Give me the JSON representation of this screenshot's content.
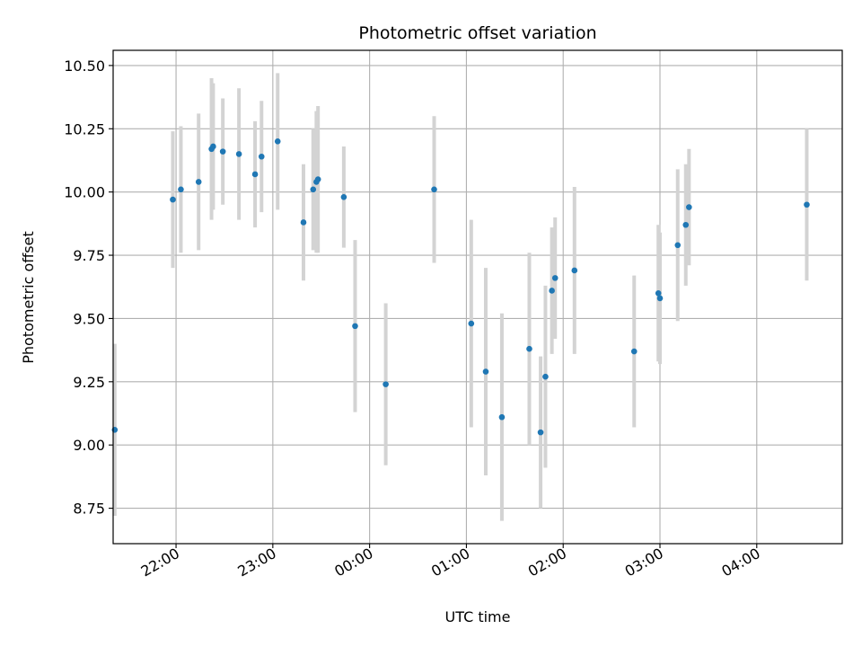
{
  "chart_data": {
    "type": "scatter",
    "title": "Photometric offset variation",
    "xlabel": "UTC time",
    "ylabel": "Photometric offset",
    "x_axis_type": "time",
    "xlim": [
      "21:21",
      "04:53"
    ],
    "ylim": [
      8.61,
      10.56
    ],
    "xticks": [
      {
        "time": "22:00",
        "label": "22:00"
      },
      {
        "time": "23:00",
        "label": "23:00"
      },
      {
        "time": "24:00",
        "label": "00:00"
      },
      {
        "time": "25:00",
        "label": "01:00"
      },
      {
        "time": "26:00",
        "label": "02:00"
      },
      {
        "time": "27:00",
        "label": "03:00"
      },
      {
        "time": "28:00",
        "label": "04:00"
      }
    ],
    "yticks": [
      8.75,
      9.0,
      9.25,
      9.5,
      9.75,
      10.0,
      10.25,
      10.5
    ],
    "grid": true,
    "colors": {
      "marker": "#1f77b4",
      "errorbar": "#d3d3d3",
      "grid": "#b0b0b0"
    },
    "points": [
      {
        "time": "21:22",
        "y": 9.06,
        "err": 0.34
      },
      {
        "time": "21:58",
        "y": 9.97,
        "err": 0.27
      },
      {
        "time": "22:03",
        "y": 10.01,
        "err": 0.25
      },
      {
        "time": "22:14",
        "y": 10.04,
        "err": 0.27
      },
      {
        "time": "22:22",
        "y": 10.17,
        "err": 0.28
      },
      {
        "time": "22:23",
        "y": 10.18,
        "err": 0.25
      },
      {
        "time": "22:29",
        "y": 10.16,
        "err": 0.21
      },
      {
        "time": "22:39",
        "y": 10.15,
        "err": 0.26
      },
      {
        "time": "22:49",
        "y": 10.07,
        "err": 0.21
      },
      {
        "time": "22:53",
        "y": 10.14,
        "err": 0.22
      },
      {
        "time": "23:03",
        "y": 10.2,
        "err": 0.27
      },
      {
        "time": "23:19",
        "y": 9.88,
        "err": 0.23
      },
      {
        "time": "23:25",
        "y": 10.01,
        "err": 0.24
      },
      {
        "time": "23:27",
        "y": 10.04,
        "err": 0.28
      },
      {
        "time": "23:28",
        "y": 10.05,
        "err": 0.29
      },
      {
        "time": "23:44",
        "y": 9.98,
        "err": 0.2
      },
      {
        "time": "23:51",
        "y": 9.47,
        "err": 0.34
      },
      {
        "time": "00:10",
        "y": 9.24,
        "err": 0.32
      },
      {
        "time": "00:40",
        "y": 10.01,
        "err": 0.29
      },
      {
        "time": "01:03",
        "y": 9.48,
        "err": 0.41
      },
      {
        "time": "01:12",
        "y": 9.29,
        "err": 0.41
      },
      {
        "time": "01:22",
        "y": 9.11,
        "err": 0.41
      },
      {
        "time": "01:39",
        "y": 9.38,
        "err": 0.38
      },
      {
        "time": "01:46",
        "y": 9.05,
        "err": 0.3
      },
      {
        "time": "01:49",
        "y": 9.27,
        "err": 0.36
      },
      {
        "time": "01:53",
        "y": 9.61,
        "err": 0.25
      },
      {
        "time": "01:55",
        "y": 9.66,
        "err": 0.24
      },
      {
        "time": "02:07",
        "y": 9.69,
        "err": 0.33
      },
      {
        "time": "02:44",
        "y": 9.37,
        "err": 0.3
      },
      {
        "time": "02:59",
        "y": 9.6,
        "err": 0.27
      },
      {
        "time": "03:00",
        "y": 9.58,
        "err": 0.26
      },
      {
        "time": "03:11",
        "y": 9.79,
        "err": 0.3
      },
      {
        "time": "03:16",
        "y": 9.87,
        "err": 0.24
      },
      {
        "time": "03:18",
        "y": 9.94,
        "err": 0.23
      },
      {
        "time": "04:31",
        "y": 9.95,
        "err": 0.3
      }
    ]
  }
}
